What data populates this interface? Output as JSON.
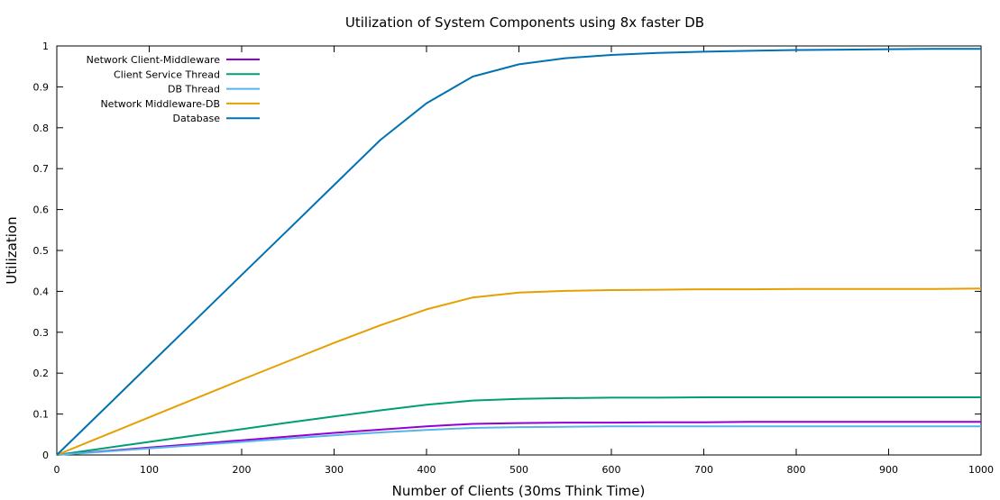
{
  "chart_data": {
    "type": "line",
    "title": "Utilization of System Components using 8x faster DB",
    "xlabel": "Number of Clients (30ms Think Time)",
    "ylabel": "Utilization",
    "xlim": [
      0,
      1000
    ],
    "ylim": [
      0,
      1
    ],
    "xticks": [
      "0",
      "100",
      "200",
      "300",
      "400",
      "500",
      "600",
      "700",
      "800",
      "900",
      "1000"
    ],
    "yticks": [
      "0",
      "0.1",
      "0.2",
      "0.3",
      "0.4",
      "0.5",
      "0.6",
      "0.7",
      "0.8",
      "0.9",
      "1"
    ],
    "grid": false,
    "legend_position": "top-left",
    "x": [
      0,
      50,
      100,
      150,
      200,
      250,
      300,
      350,
      400,
      450,
      500,
      550,
      600,
      650,
      700,
      750,
      800,
      850,
      900,
      950,
      1000
    ],
    "series": [
      {
        "name": "Network Client-Middleware",
        "color": "#9400d3",
        "values": [
          0,
          0.009,
          0.018,
          0.027,
          0.036,
          0.045,
          0.054,
          0.062,
          0.07,
          0.076,
          0.078,
          0.079,
          0.079,
          0.08,
          0.08,
          0.081,
          0.081,
          0.081,
          0.081,
          0.081,
          0.081
        ]
      },
      {
        "name": "Client Service Thread",
        "color": "#009e73",
        "values": [
          0,
          0.016,
          0.032,
          0.048,
          0.063,
          0.079,
          0.094,
          0.109,
          0.123,
          0.133,
          0.137,
          0.139,
          0.14,
          0.14,
          0.141,
          0.141,
          0.141,
          0.141,
          0.141,
          0.141,
          0.141
        ]
      },
      {
        "name": "DB Thread",
        "color": "#56b4e9",
        "values": [
          0,
          0.008,
          0.016,
          0.024,
          0.032,
          0.04,
          0.048,
          0.055,
          0.061,
          0.066,
          0.068,
          0.069,
          0.07,
          0.07,
          0.07,
          0.07,
          0.07,
          0.07,
          0.07,
          0.07,
          0.07
        ]
      },
      {
        "name": "Network Middleware-DB",
        "color": "#e69f00",
        "values": [
          0,
          0.046,
          0.092,
          0.138,
          0.184,
          0.229,
          0.274,
          0.317,
          0.356,
          0.385,
          0.397,
          0.401,
          0.403,
          0.404,
          0.405,
          0.405,
          0.406,
          0.406,
          0.406,
          0.406,
          0.407
        ]
      },
      {
        "name": "Database",
        "color": "#0072b2",
        "values": [
          0,
          0.11,
          0.22,
          0.33,
          0.44,
          0.55,
          0.66,
          0.77,
          0.86,
          0.925,
          0.955,
          0.97,
          0.978,
          0.983,
          0.986,
          0.988,
          0.99,
          0.991,
          0.992,
          0.993,
          0.993
        ]
      }
    ]
  }
}
